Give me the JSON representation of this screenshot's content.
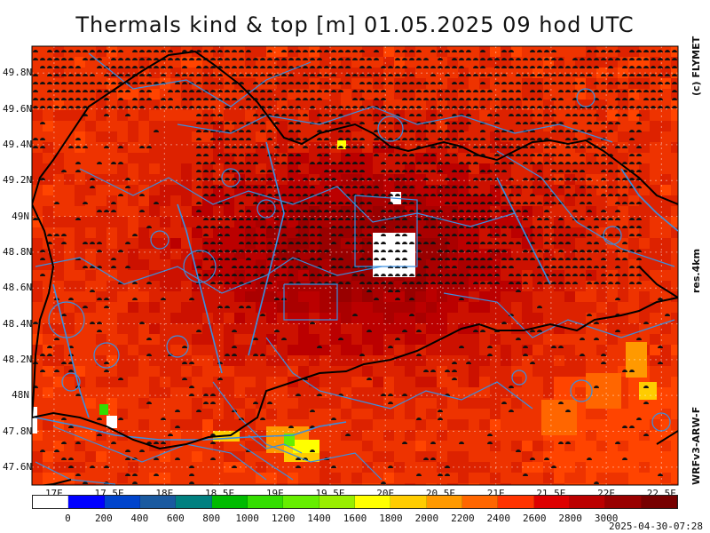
{
  "title": "Thermals kind & top [m]  01.05.2025 09 hod UTC",
  "side_labels": {
    "copyright": "(c) FLYMET",
    "resolution": "res.4km",
    "model": "WRFv3-ARW-F"
  },
  "timestamp": "2025-04-30-07:28",
  "map": {
    "lat_labels": [
      "49.8N",
      "49.6N",
      "49.4N",
      "49.2N",
      "49N",
      "48.8N",
      "48.6N",
      "48.4N",
      "48.2N",
      "48N",
      "47.8N",
      "47.6N"
    ],
    "lon_labels": [
      "17E",
      "17.5E",
      "18E",
      "18.5E",
      "19E",
      "19.5E",
      "20E",
      "20.5E",
      "21E",
      "21.5E",
      "22E",
      "22.5E"
    ],
    "lat_range": [
      47.5,
      49.95
    ],
    "lon_range": [
      16.8,
      22.65
    ],
    "map_symbol": "cloud-symbol",
    "border_color": "#000000",
    "airspace_color": "#3a8fe0"
  },
  "colorbar": {
    "labels": [
      "0",
      "200",
      "400",
      "600",
      "800",
      "1000",
      "1200",
      "1400",
      "1600",
      "1800",
      "2000",
      "2200",
      "2400",
      "2600",
      "2800",
      "3000"
    ],
    "colors": [
      "#ffffff",
      "#0000ff",
      "#0044cc",
      "#1a5aa0",
      "#008080",
      "#00bb00",
      "#33dd00",
      "#66ee00",
      "#99ee00",
      "#ffff00",
      "#ffcc00",
      "#ff9900",
      "#ff6600",
      "#ff3300",
      "#dd0000",
      "#bb0000",
      "#990000",
      "#770000"
    ]
  }
}
